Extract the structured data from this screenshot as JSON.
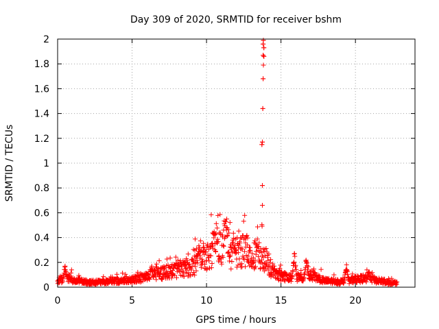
{
  "chart_data": {
    "type": "scatter",
    "title": "Day 309 of 2020, SRMTID for receiver bshm",
    "xlabel": "GPS time / hours",
    "ylabel": "SRMTID / TECUs",
    "xlim": [
      0,
      24
    ],
    "ylim": [
      0,
      2
    ],
    "x_ticks": [
      0,
      5,
      10,
      15,
      20
    ],
    "x_tick_labels": [
      "0",
      "5",
      "10",
      "15",
      "20"
    ],
    "y_ticks": [
      0,
      0.2,
      0.4,
      0.6,
      0.8,
      1,
      1.2,
      1.4,
      1.6,
      1.8,
      2
    ],
    "y_tick_labels": [
      "0",
      "0.2",
      "0.4",
      "0.6",
      "0.8",
      "1",
      "1.2",
      "1.4",
      "1.6",
      "1.8",
      "2"
    ],
    "grid": true,
    "legend": "none",
    "marker": "plus",
    "color": "#ff0000",
    "series": [
      {
        "name": "SRMTID",
        "baseline_profile": {
          "x": [
            0,
            0.5,
            1,
            2,
            3,
            4,
            5,
            6,
            6.5,
            7,
            7.5,
            8,
            8.5,
            9,
            9.5,
            10,
            10.5,
            11,
            11.3,
            11.7,
            12,
            12.5,
            13,
            13.5,
            14,
            14.3,
            14.7,
            15,
            15.5,
            16,
            16.5,
            17,
            17.5,
            18,
            18.5,
            19,
            19.5,
            20,
            20.5,
            21,
            21.5,
            22,
            22.8
          ],
          "y": [
            0.04,
            0.08,
            0.06,
            0.04,
            0.04,
            0.05,
            0.06,
            0.08,
            0.1,
            0.11,
            0.13,
            0.14,
            0.15,
            0.16,
            0.2,
            0.24,
            0.3,
            0.33,
            0.4,
            0.22,
            0.28,
            0.3,
            0.28,
            0.25,
            0.22,
            0.15,
            0.1,
            0.09,
            0.08,
            0.08,
            0.07,
            0.1,
            0.07,
            0.05,
            0.05,
            0.04,
            0.05,
            0.06,
            0.07,
            0.07,
            0.05,
            0.04,
            0.03
          ]
        },
        "spikes": [
          {
            "x": 0.5,
            "peak": 0.19
          },
          {
            "x": 6.3,
            "peak": 0.19
          },
          {
            "x": 9.5,
            "peak": 0.41
          },
          {
            "x": 10.5,
            "peak": 0.51
          },
          {
            "x": 11.3,
            "peak": 0.58
          },
          {
            "x": 11.8,
            "peak": 0.5
          },
          {
            "x": 13.4,
            "peak": 0.44
          },
          {
            "x": 15.9,
            "peak": 0.29
          },
          {
            "x": 16.7,
            "peak": 0.25
          },
          {
            "x": 19.4,
            "peak": 0.19
          },
          {
            "x": 20.9,
            "peak": 0.15
          }
        ],
        "outliers": [
          {
            "x": 13.75,
            "y": 0.66
          },
          {
            "x": 13.75,
            "y": 0.82
          },
          {
            "x": 13.72,
            "y": 1.15
          },
          {
            "x": 13.75,
            "y": 1.17
          },
          {
            "x": 13.78,
            "y": 1.44
          },
          {
            "x": 13.8,
            "y": 1.68
          },
          {
            "x": 13.82,
            "y": 1.79
          },
          {
            "x": 13.85,
            "y": 1.86
          },
          {
            "x": 13.8,
            "y": 1.87
          },
          {
            "x": 13.85,
            "y": 1.93
          },
          {
            "x": 13.8,
            "y": 1.96
          },
          {
            "x": 13.82,
            "y": 1.99
          }
        ]
      }
    ]
  }
}
